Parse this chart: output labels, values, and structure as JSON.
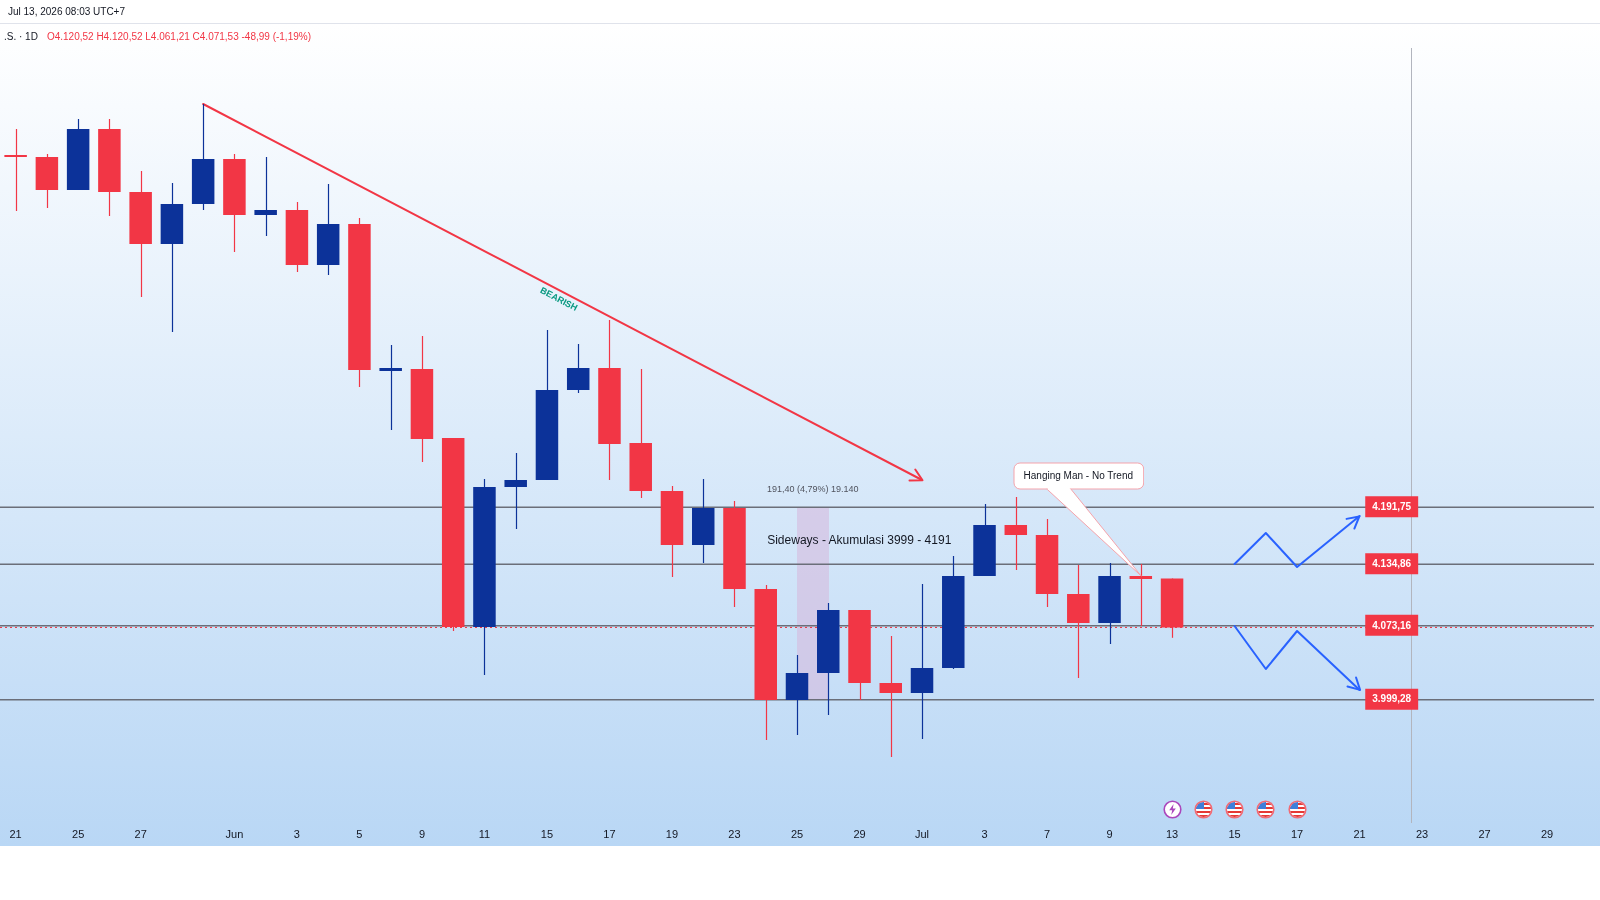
{
  "chart_data": {
    "type": "candlestick",
    "title": ".S. · 1D",
    "subtitle": "O4.120,52 H4.120,52 L4.061,21 C4.071,53 -48,99 (-1,19%)",
    "annotations": [
      "Jul 13, 2026 08:03 UTC+7",
      "191,40 (4,79%) 19.140",
      "Sideways - Akumulasi 3999 - 4191",
      "Hanging Man - No Trend"
    ],
    "categories": [
      "21",
      null,
      "25",
      null,
      "27",
      null,
      null,
      "Jun",
      null,
      "3",
      null,
      "5",
      null,
      "9",
      null,
      "11",
      null,
      "15",
      null,
      "17",
      null,
      "19",
      null,
      "23",
      null,
      "25",
      null,
      "29",
      null,
      "Jul",
      null,
      "3",
      null,
      "7",
      null,
      "9",
      null,
      "13",
      null,
      "15",
      null,
      "17",
      null,
      "21",
      null,
      "23",
      null,
      "27",
      null,
      "29",
      null
    ],
    "ohlc": [
      [
        4543,
        4570,
        4488,
        4542
      ],
      [
        4542,
        4545,
        4491,
        4509
      ],
      [
        4509,
        4580,
        4509,
        4570
      ],
      [
        4570,
        4580,
        4483,
        4507
      ],
      [
        4507,
        4528,
        4402,
        4455
      ],
      [
        4455,
        4516,
        4367,
        4495
      ],
      [
        4495,
        4595,
        4489,
        4540
      ],
      [
        4540,
        4545,
        4447,
        4484
      ],
      [
        4484,
        4542,
        4463,
        4489
      ],
      [
        4489,
        4497,
        4427,
        4434
      ],
      [
        4434,
        4515,
        4424,
        4475
      ],
      [
        4475,
        4481,
        4312,
        4329
      ],
      [
        4328,
        4354,
        4269,
        4331
      ],
      [
        4330,
        4363,
        4237,
        4260
      ],
      [
        4261,
        4261,
        4068,
        4072
      ],
      [
        4072,
        4220,
        4024,
        4212
      ],
      [
        4212,
        4246,
        4170,
        4219
      ],
      [
        4219,
        4369,
        4219,
        4309
      ],
      [
        4309,
        4355,
        4306,
        4331
      ],
      [
        4331,
        4379,
        4219,
        4255
      ],
      [
        4256,
        4330,
        4201,
        4208
      ],
      [
        4208,
        4213,
        4122,
        4154
      ],
      [
        4154,
        4220,
        4136,
        4191
      ],
      [
        4191,
        4198,
        4092,
        4110
      ],
      [
        4110,
        4114,
        3959,
        3999
      ],
      [
        3999,
        4044,
        3964,
        4026
      ],
      [
        4026,
        4096,
        3984,
        4089
      ],
      [
        4089,
        4089,
        3999,
        4016
      ],
      [
        4016,
        4063,
        3942,
        4006
      ],
      [
        4006,
        4115,
        3960,
        4031
      ],
      [
        4031,
        4143,
        4030,
        4123
      ],
      [
        4123,
        4195,
        4123,
        4174
      ],
      [
        4174,
        4202,
        4129,
        4164
      ],
      [
        4164,
        4180,
        4092,
        4105
      ],
      [
        4105,
        4134,
        4021,
        4076
      ],
      [
        4076,
        4136,
        4055,
        4123
      ],
      [
        4123,
        4135,
        4073,
        4120
      ],
      [
        4120.52,
        4120.52,
        4061.21,
        4071.53
      ],
      null,
      null,
      null,
      null,
      null,
      null,
      null,
      null,
      null,
      null,
      null,
      null,
      null
    ],
    "colors": [
      "#f23645",
      "#f23645",
      "#0c3299",
      "#f23645",
      "#f23645",
      "#0c3299",
      "#0c3299",
      "#f23645",
      "#0c3299",
      "#f23645",
      "#0c3299",
      "#f23645",
      "#0c3299",
      "#f23645",
      "#f23645",
      "#0c3299",
      "#0c3299",
      "#0c3299",
      "#0c3299",
      "#f23645",
      "#f23645",
      "#f23645",
      "#0c3299",
      "#f23645",
      "#f23645",
      "#0c3299",
      "#0c3299",
      "#f23645",
      "#f23645",
      "#0c3299",
      "#0c3299",
      "#0c3299",
      "#f23645",
      "#f23645",
      "#f23645",
      "#0c3299",
      "#f23645",
      "#f23645",
      null,
      null,
      null,
      null,
      null,
      null,
      null,
      null,
      null,
      null,
      null,
      null,
      null
    ],
    "series": [
      {
        "type": "line",
        "name": "BEARISH",
        "color": "#f23645",
        "values": [
          null,
          null,
          null,
          null,
          null,
          null,
          4595,
          null,
          null,
          null,
          null,
          null,
          null,
          null,
          null,
          null,
          null,
          null,
          null,
          null,
          null,
          null,
          null,
          null,
          null,
          null,
          null,
          null,
          null,
          4219,
          null,
          null,
          null,
          null,
          null,
          null,
          null,
          null,
          null,
          null,
          null,
          null,
          null,
          null,
          null,
          null,
          null,
          null,
          null,
          null,
          null
        ]
      },
      {
        "type": "line",
        "color": "#2962ff",
        "values": [
          null,
          null,
          null,
          null,
          null,
          null,
          null,
          null,
          null,
          null,
          null,
          null,
          null,
          null,
          null,
          null,
          null,
          null,
          null,
          null,
          null,
          null,
          null,
          null,
          null,
          null,
          null,
          null,
          null,
          null,
          null,
          null,
          null,
          null,
          null,
          null,
          null,
          null,
          null,
          4135,
          4166,
          4132,
          null,
          4183,
          null,
          null,
          null,
          null,
          null,
          null,
          null
        ]
      },
      {
        "type": "line",
        "color": "#2962ff",
        "values": [
          null,
          null,
          null,
          null,
          null,
          null,
          null,
          null,
          null,
          null,
          null,
          null,
          null,
          null,
          null,
          null,
          null,
          null,
          null,
          null,
          null,
          null,
          null,
          null,
          null,
          null,
          null,
          null,
          null,
          null,
          null,
          null,
          null,
          null,
          null,
          null,
          null,
          null,
          null,
          4073,
          4030,
          4068,
          null,
          4009,
          null,
          null,
          null,
          null,
          null,
          null,
          null
        ]
      }
    ],
    "ylim": [
      3877,
      4651
    ],
    "yticks": [
      {
        "value": 3999.28,
        "label": "3.999,28"
      },
      {
        "value": 4073.16,
        "label": "4.073,16"
      },
      {
        "value": 4134.86,
        "label": "4.134,86"
      },
      {
        "value": 4191.75,
        "label": "4.191,75"
      }
    ],
    "ref_lines": [
      {
        "axis": "y",
        "value": 4071.53,
        "color": "#f23645",
        "line_style": "dotted"
      },
      {
        "axis": "y",
        "value": 4191.75,
        "color": "#6b6e79"
      },
      {
        "axis": "y",
        "value": 4134.86,
        "color": "#6b6e79"
      },
      {
        "axis": "y",
        "value": 4073.16,
        "color": "#6b6e79"
      },
      {
        "axis": "y",
        "value": 3999.28,
        "color": "#6b6e79"
      }
    ]
  }
}
